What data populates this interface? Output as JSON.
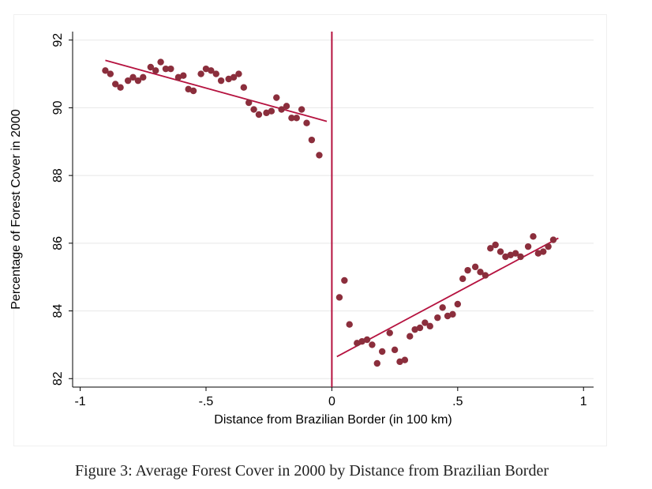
{
  "chart_data": {
    "type": "scatter",
    "title": "",
    "xlabel": "Distance from Brazilian Border (in 100 km)",
    "ylabel": "Percentage of Forest Cover in 2000",
    "xlim": [
      -1.03,
      1.04
    ],
    "ylim": [
      81.75,
      92.25
    ],
    "x_ticks": [
      -1,
      -0.5,
      0,
      0.5,
      1
    ],
    "x_tick_labels": [
      "-1",
      "-.5",
      "0",
      ".5",
      "1"
    ],
    "y_ticks": [
      82,
      84,
      86,
      88,
      90,
      92
    ],
    "y_tick_labels": [
      "82",
      "84",
      "86",
      "88",
      "90",
      "92"
    ],
    "grid": "horizontal",
    "cutoff_line_x": 0,
    "colors": {
      "points": "#8b2e3c",
      "fit": "#b5123f",
      "grid": "#e8e8e8"
    },
    "series": [
      {
        "points": [
          [
            -0.9,
            91.1
          ],
          [
            -0.88,
            91.0
          ],
          [
            -0.86,
            90.7
          ],
          [
            -0.84,
            90.6
          ],
          [
            -0.81,
            90.8
          ],
          [
            -0.79,
            90.9
          ],
          [
            -0.77,
            90.8
          ],
          [
            -0.75,
            90.9
          ],
          [
            -0.72,
            91.2
          ],
          [
            -0.7,
            91.1
          ],
          [
            -0.68,
            91.35
          ],
          [
            -0.66,
            91.15
          ],
          [
            -0.64,
            91.15
          ],
          [
            -0.61,
            90.9
          ],
          [
            -0.59,
            90.95
          ],
          [
            -0.57,
            90.55
          ],
          [
            -0.55,
            90.5
          ],
          [
            -0.52,
            91.0
          ],
          [
            -0.5,
            91.15
          ],
          [
            -0.48,
            91.1
          ],
          [
            -0.46,
            91.0
          ],
          [
            -0.44,
            90.8
          ],
          [
            -0.41,
            90.85
          ],
          [
            -0.39,
            90.9
          ],
          [
            -0.37,
            91.0
          ],
          [
            -0.35,
            90.6
          ],
          [
            -0.33,
            90.15
          ],
          [
            -0.31,
            89.95
          ],
          [
            -0.29,
            89.8
          ],
          [
            -0.26,
            89.85
          ],
          [
            -0.24,
            89.9
          ],
          [
            -0.22,
            90.3
          ],
          [
            -0.2,
            89.95
          ],
          [
            -0.18,
            90.05
          ],
          [
            -0.16,
            89.7
          ],
          [
            -0.14,
            89.7
          ],
          [
            -0.12,
            89.95
          ],
          [
            -0.1,
            89.55
          ],
          [
            -0.08,
            89.05
          ],
          [
            -0.05,
            88.6
          ],
          [
            0.03,
            84.4
          ],
          [
            0.05,
            84.9
          ],
          [
            0.07,
            83.6
          ],
          [
            0.1,
            83.05
          ],
          [
            0.12,
            83.1
          ],
          [
            0.14,
            83.15
          ],
          [
            0.16,
            83.0
          ],
          [
            0.18,
            82.45
          ],
          [
            0.2,
            82.8
          ],
          [
            0.23,
            83.35
          ],
          [
            0.25,
            82.85
          ],
          [
            0.27,
            82.5
          ],
          [
            0.29,
            82.55
          ],
          [
            0.31,
            83.25
          ],
          [
            0.33,
            83.45
          ],
          [
            0.35,
            83.5
          ],
          [
            0.37,
            83.65
          ],
          [
            0.39,
            83.55
          ],
          [
            0.42,
            83.8
          ],
          [
            0.44,
            84.1
          ],
          [
            0.46,
            83.85
          ],
          [
            0.48,
            83.9
          ],
          [
            0.5,
            84.2
          ],
          [
            0.52,
            84.95
          ],
          [
            0.54,
            85.2
          ],
          [
            0.57,
            85.3
          ],
          [
            0.59,
            85.15
          ],
          [
            0.61,
            85.05
          ],
          [
            0.63,
            85.85
          ],
          [
            0.65,
            85.95
          ],
          [
            0.67,
            85.75
          ],
          [
            0.69,
            85.6
          ],
          [
            0.71,
            85.65
          ],
          [
            0.73,
            85.7
          ],
          [
            0.75,
            85.6
          ],
          [
            0.78,
            85.9
          ],
          [
            0.8,
            86.2
          ],
          [
            0.82,
            85.7
          ],
          [
            0.84,
            85.75
          ],
          [
            0.86,
            85.9
          ],
          [
            0.88,
            86.1
          ]
        ]
      }
    ],
    "fit_lines": [
      {
        "x": [
          -0.9,
          -0.02
        ],
        "y": [
          91.4,
          89.6
        ]
      },
      {
        "x": [
          0.02,
          0.9
        ],
        "y": [
          82.65,
          86.15
        ]
      }
    ]
  },
  "caption": "Figure 3: Average Forest Cover in 2000 by Distance from Brazilian Border"
}
